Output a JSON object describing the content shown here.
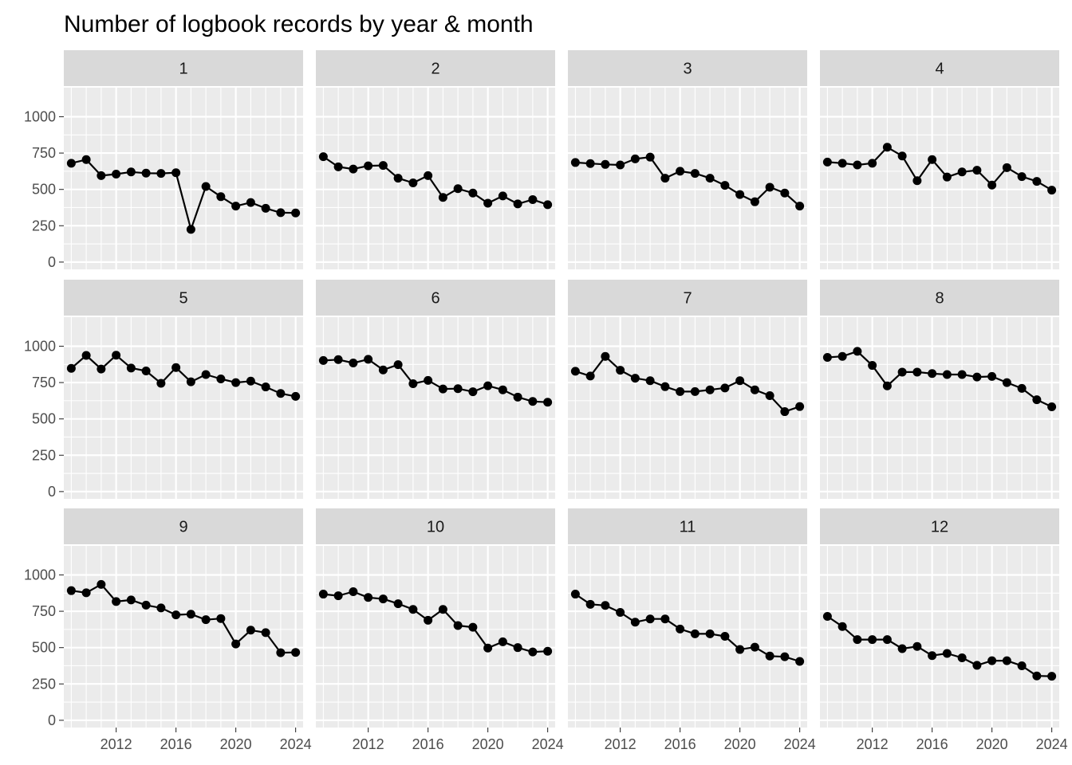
{
  "chart_data": {
    "type": "line",
    "title": "Number of logbook records by year & month",
    "xlabel": "",
    "ylabel": "",
    "xlim": [
      2008.5,
      2024.5
    ],
    "ylim": [
      -50,
      1200
    ],
    "x_ticks": [
      2012,
      2016,
      2020,
      2024
    ],
    "y_ticks": [
      0,
      250,
      500,
      750,
      1000
    ],
    "grid": true,
    "facet_layout": {
      "rows": 3,
      "cols": 4
    },
    "x": [
      2009,
      2010,
      2011,
      2012,
      2013,
      2014,
      2015,
      2016,
      2017,
      2018,
      2019,
      2020,
      2021,
      2022,
      2023,
      2024
    ],
    "panels": [
      {
        "label": "1",
        "values": [
          680,
          705,
          595,
          605,
          620,
          612,
          610,
          615,
          225,
          520,
          450,
          385,
          410,
          370,
          340,
          338
        ]
      },
      {
        "label": "2",
        "values": [
          725,
          655,
          640,
          662,
          665,
          577,
          545,
          595,
          445,
          505,
          475,
          405,
          455,
          400,
          430,
          395
        ]
      },
      {
        "label": "3",
        "values": [
          685,
          678,
          672,
          668,
          710,
          722,
          577,
          625,
          610,
          577,
          528,
          465,
          415,
          515,
          475,
          385
        ]
      },
      {
        "label": "4",
        "values": [
          688,
          680,
          668,
          680,
          790,
          730,
          560,
          705,
          585,
          620,
          632,
          530,
          650,
          588,
          555,
          495
        ]
      },
      {
        "label": "5",
        "values": [
          848,
          937,
          843,
          938,
          850,
          830,
          745,
          853,
          755,
          805,
          775,
          750,
          760,
          720,
          675,
          655
        ]
      },
      {
        "label": "6",
        "values": [
          902,
          908,
          885,
          910,
          837,
          873,
          742,
          765,
          706,
          708,
          687,
          728,
          700,
          650,
          620,
          615
        ]
      },
      {
        "label": "7",
        "values": [
          828,
          795,
          930,
          835,
          780,
          763,
          722,
          688,
          688,
          700,
          713,
          763,
          700,
          660,
          550,
          585
        ]
      },
      {
        "label": "8",
        "values": [
          923,
          930,
          965,
          868,
          727,
          822,
          822,
          812,
          805,
          805,
          788,
          792,
          750,
          710,
          632,
          583
        ]
      },
      {
        "label": "9",
        "values": [
          892,
          877,
          935,
          817,
          828,
          792,
          773,
          725,
          730,
          692,
          700,
          525,
          620,
          603,
          465,
          467
        ]
      },
      {
        "label": "10",
        "values": [
          868,
          857,
          885,
          845,
          835,
          802,
          763,
          688,
          763,
          652,
          640,
          497,
          540,
          500,
          470,
          475
        ]
      },
      {
        "label": "11",
        "values": [
          868,
          798,
          790,
          742,
          675,
          697,
          697,
          628,
          595,
          595,
          578,
          487,
          503,
          442,
          437,
          405
        ]
      },
      {
        "label": "12",
        "values": [
          715,
          645,
          555,
          555,
          555,
          493,
          508,
          445,
          460,
          430,
          378,
          410,
          410,
          375,
          305,
          303
        ]
      }
    ]
  }
}
